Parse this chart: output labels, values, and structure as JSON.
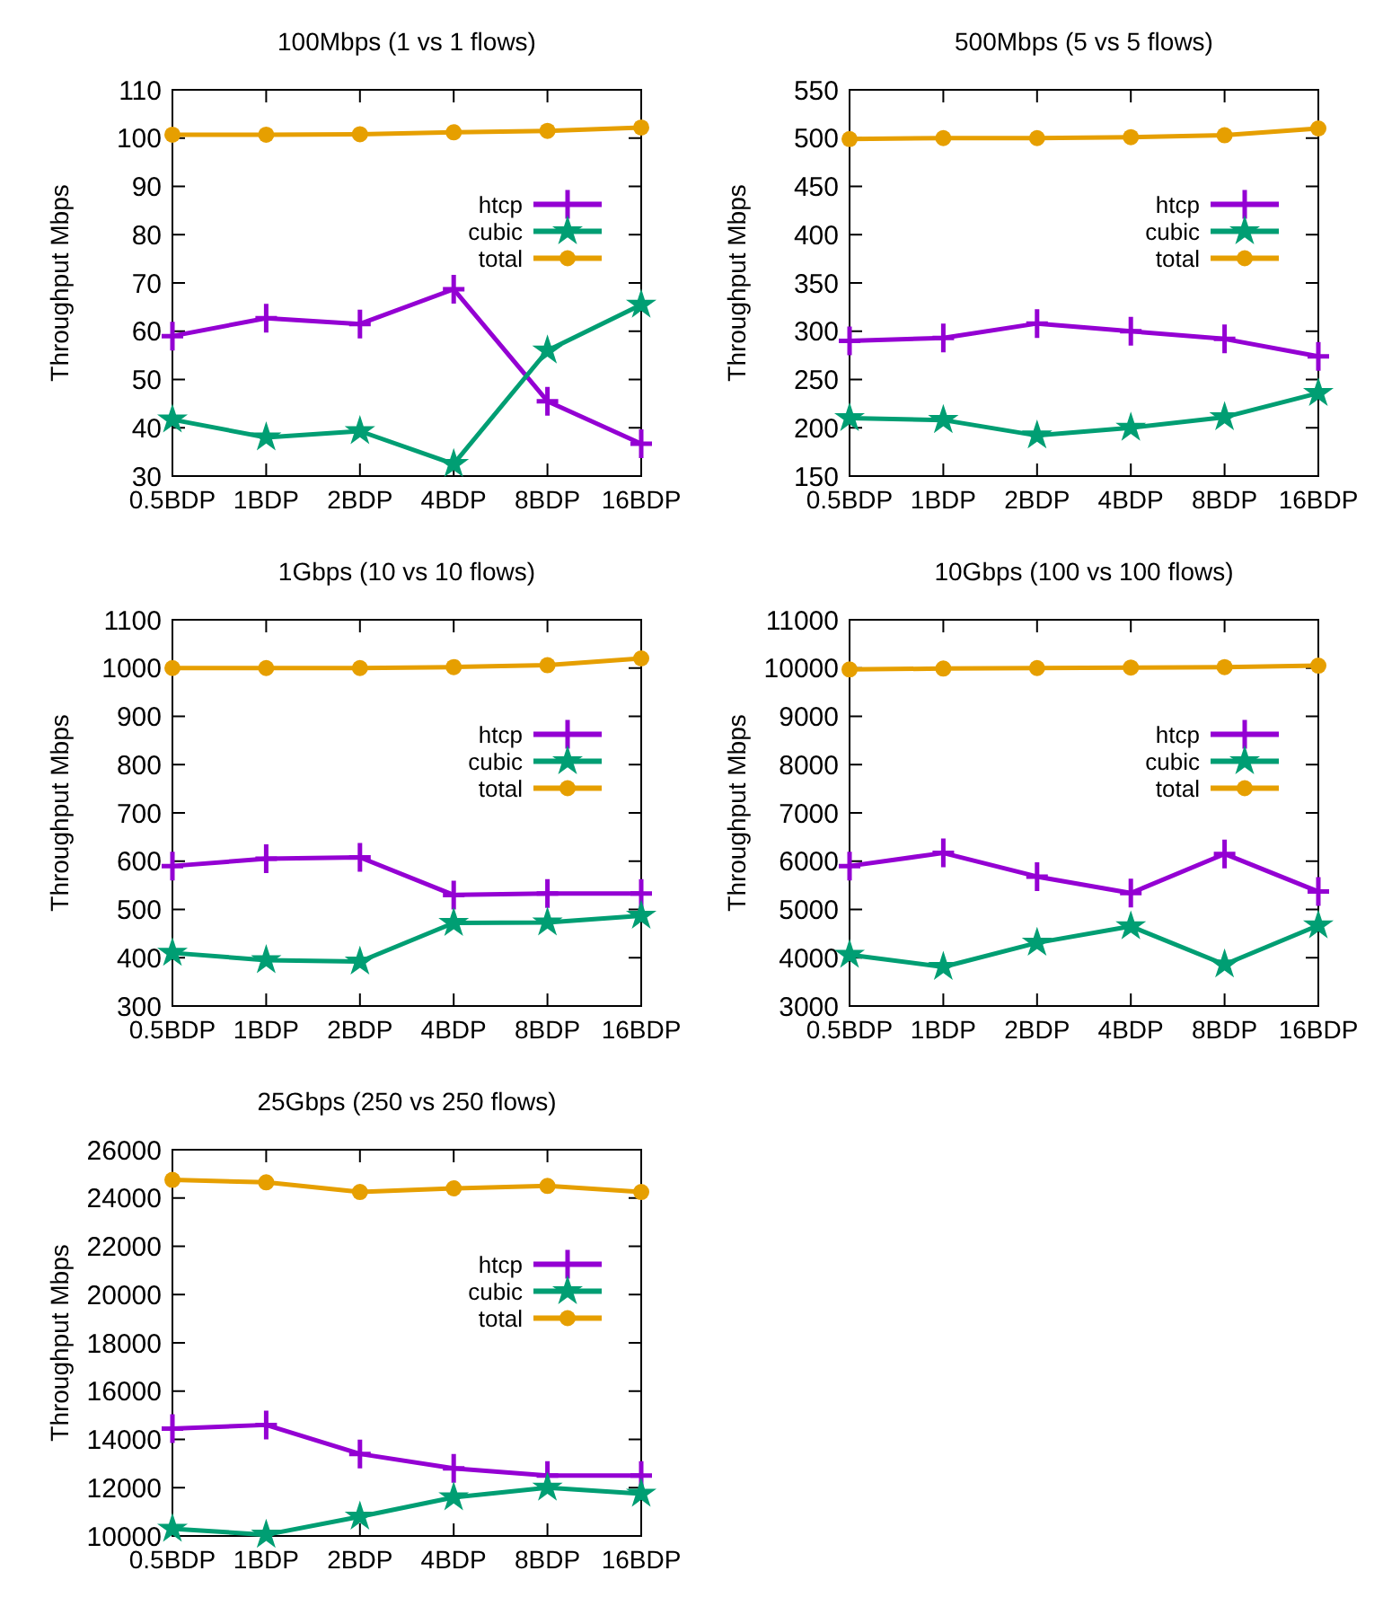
{
  "chart_data": [
    {
      "type": "line",
      "title": "100Mbps (1 vs 1 flows)",
      "ylabel": "Throughput Mbps",
      "categories": [
        "0.5BDP",
        "1BDP",
        "2BDP",
        "4BDP",
        "8BDP",
        "16BDP"
      ],
      "ylim": [
        30,
        110
      ],
      "yticks": [
        30,
        40,
        50,
        60,
        70,
        80,
        90,
        100,
        110
      ],
      "legend": "top right",
      "series": [
        {
          "name": "htcp",
          "color": "#9400d3",
          "marker": "cross",
          "values": [
            59,
            62.7,
            61.5,
            68.7,
            45.5,
            36.7
          ]
        },
        {
          "name": "cubic",
          "color": "#009e73",
          "marker": "star",
          "values": [
            41.7,
            38,
            39.3,
            32.5,
            56,
            65.5
          ]
        },
        {
          "name": "total",
          "color": "#e69f00",
          "marker": "circle",
          "values": [
            100.7,
            100.7,
            100.8,
            101.2,
            101.5,
            102.2
          ]
        }
      ]
    },
    {
      "type": "line",
      "title": "500Mbps (5 vs 5 flows)",
      "ylabel": "Throughput Mbps",
      "categories": [
        "0.5BDP",
        "1BDP",
        "2BDP",
        "4BDP",
        "8BDP",
        "16BDP"
      ],
      "ylim": [
        150,
        550
      ],
      "yticks": [
        150,
        200,
        250,
        300,
        350,
        400,
        450,
        500,
        550
      ],
      "legend": "top right",
      "series": [
        {
          "name": "htcp",
          "color": "#9400d3",
          "marker": "cross",
          "values": [
            290,
            293,
            308,
            300,
            292,
            274
          ]
        },
        {
          "name": "cubic",
          "color": "#009e73",
          "marker": "star",
          "values": [
            210,
            208,
            192,
            200,
            211,
            236
          ]
        },
        {
          "name": "total",
          "color": "#e69f00",
          "marker": "circle",
          "values": [
            499,
            500,
            500,
            501,
            503,
            510
          ]
        }
      ]
    },
    {
      "type": "line",
      "title": "1Gbps (10 vs 10 flows)",
      "ylabel": "Throughput Mbps",
      "categories": [
        "0.5BDP",
        "1BDP",
        "2BDP",
        "4BDP",
        "8BDP",
        "16BDP"
      ],
      "ylim": [
        300,
        1100
      ],
      "yticks": [
        300,
        400,
        500,
        600,
        700,
        800,
        900,
        1000,
        1100
      ],
      "legend": "top right",
      "series": [
        {
          "name": "htcp",
          "color": "#9400d3",
          "marker": "cross",
          "values": [
            590,
            605,
            608,
            530,
            533,
            533
          ]
        },
        {
          "name": "cubic",
          "color": "#009e73",
          "marker": "star",
          "values": [
            410,
            395,
            392,
            472,
            473,
            487
          ]
        },
        {
          "name": "total",
          "color": "#e69f00",
          "marker": "circle",
          "values": [
            1000,
            1000,
            1000,
            1002,
            1006,
            1020
          ]
        }
      ]
    },
    {
      "type": "line",
      "title": "10Gbps (100 vs 100 flows)",
      "ylabel": "Throughput Mbps",
      "categories": [
        "0.5BDP",
        "1BDP",
        "2BDP",
        "4BDP",
        "8BDP",
        "16BDP"
      ],
      "ylim": [
        3000,
        11000
      ],
      "yticks": [
        3000,
        4000,
        5000,
        6000,
        7000,
        8000,
        9000,
        10000,
        11000
      ],
      "legend": "top right",
      "series": [
        {
          "name": "htcp",
          "color": "#9400d3",
          "marker": "cross",
          "values": [
            5900,
            6170,
            5680,
            5340,
            6150,
            5370
          ]
        },
        {
          "name": "cubic",
          "color": "#009e73",
          "marker": "star",
          "values": [
            4060,
            3810,
            4310,
            4650,
            3860,
            4670
          ]
        },
        {
          "name": "total",
          "color": "#e69f00",
          "marker": "circle",
          "values": [
            9970,
            9990,
            10000,
            10010,
            10020,
            10050
          ]
        }
      ]
    },
    {
      "type": "line",
      "title": "25Gbps (250 vs 250 flows)",
      "ylabel": "Throughput Mbps",
      "categories": [
        "0.5BDP",
        "1BDP",
        "2BDP",
        "4BDP",
        "8BDP",
        "16BDP"
      ],
      "ylim": [
        10000,
        26000
      ],
      "yticks": [
        10000,
        12000,
        14000,
        16000,
        18000,
        20000,
        22000,
        24000,
        26000
      ],
      "legend": "top right",
      "series": [
        {
          "name": "htcp",
          "color": "#9400d3",
          "marker": "cross",
          "values": [
            14450,
            14600,
            13400,
            12800,
            12500,
            12500
          ]
        },
        {
          "name": "cubic",
          "color": "#009e73",
          "marker": "star",
          "values": [
            10300,
            10050,
            10800,
            11600,
            12000,
            11750
          ]
        },
        {
          "name": "total",
          "color": "#e69f00",
          "marker": "circle",
          "values": [
            24750,
            24650,
            24250,
            24400,
            24500,
            24250
          ]
        }
      ]
    }
  ]
}
